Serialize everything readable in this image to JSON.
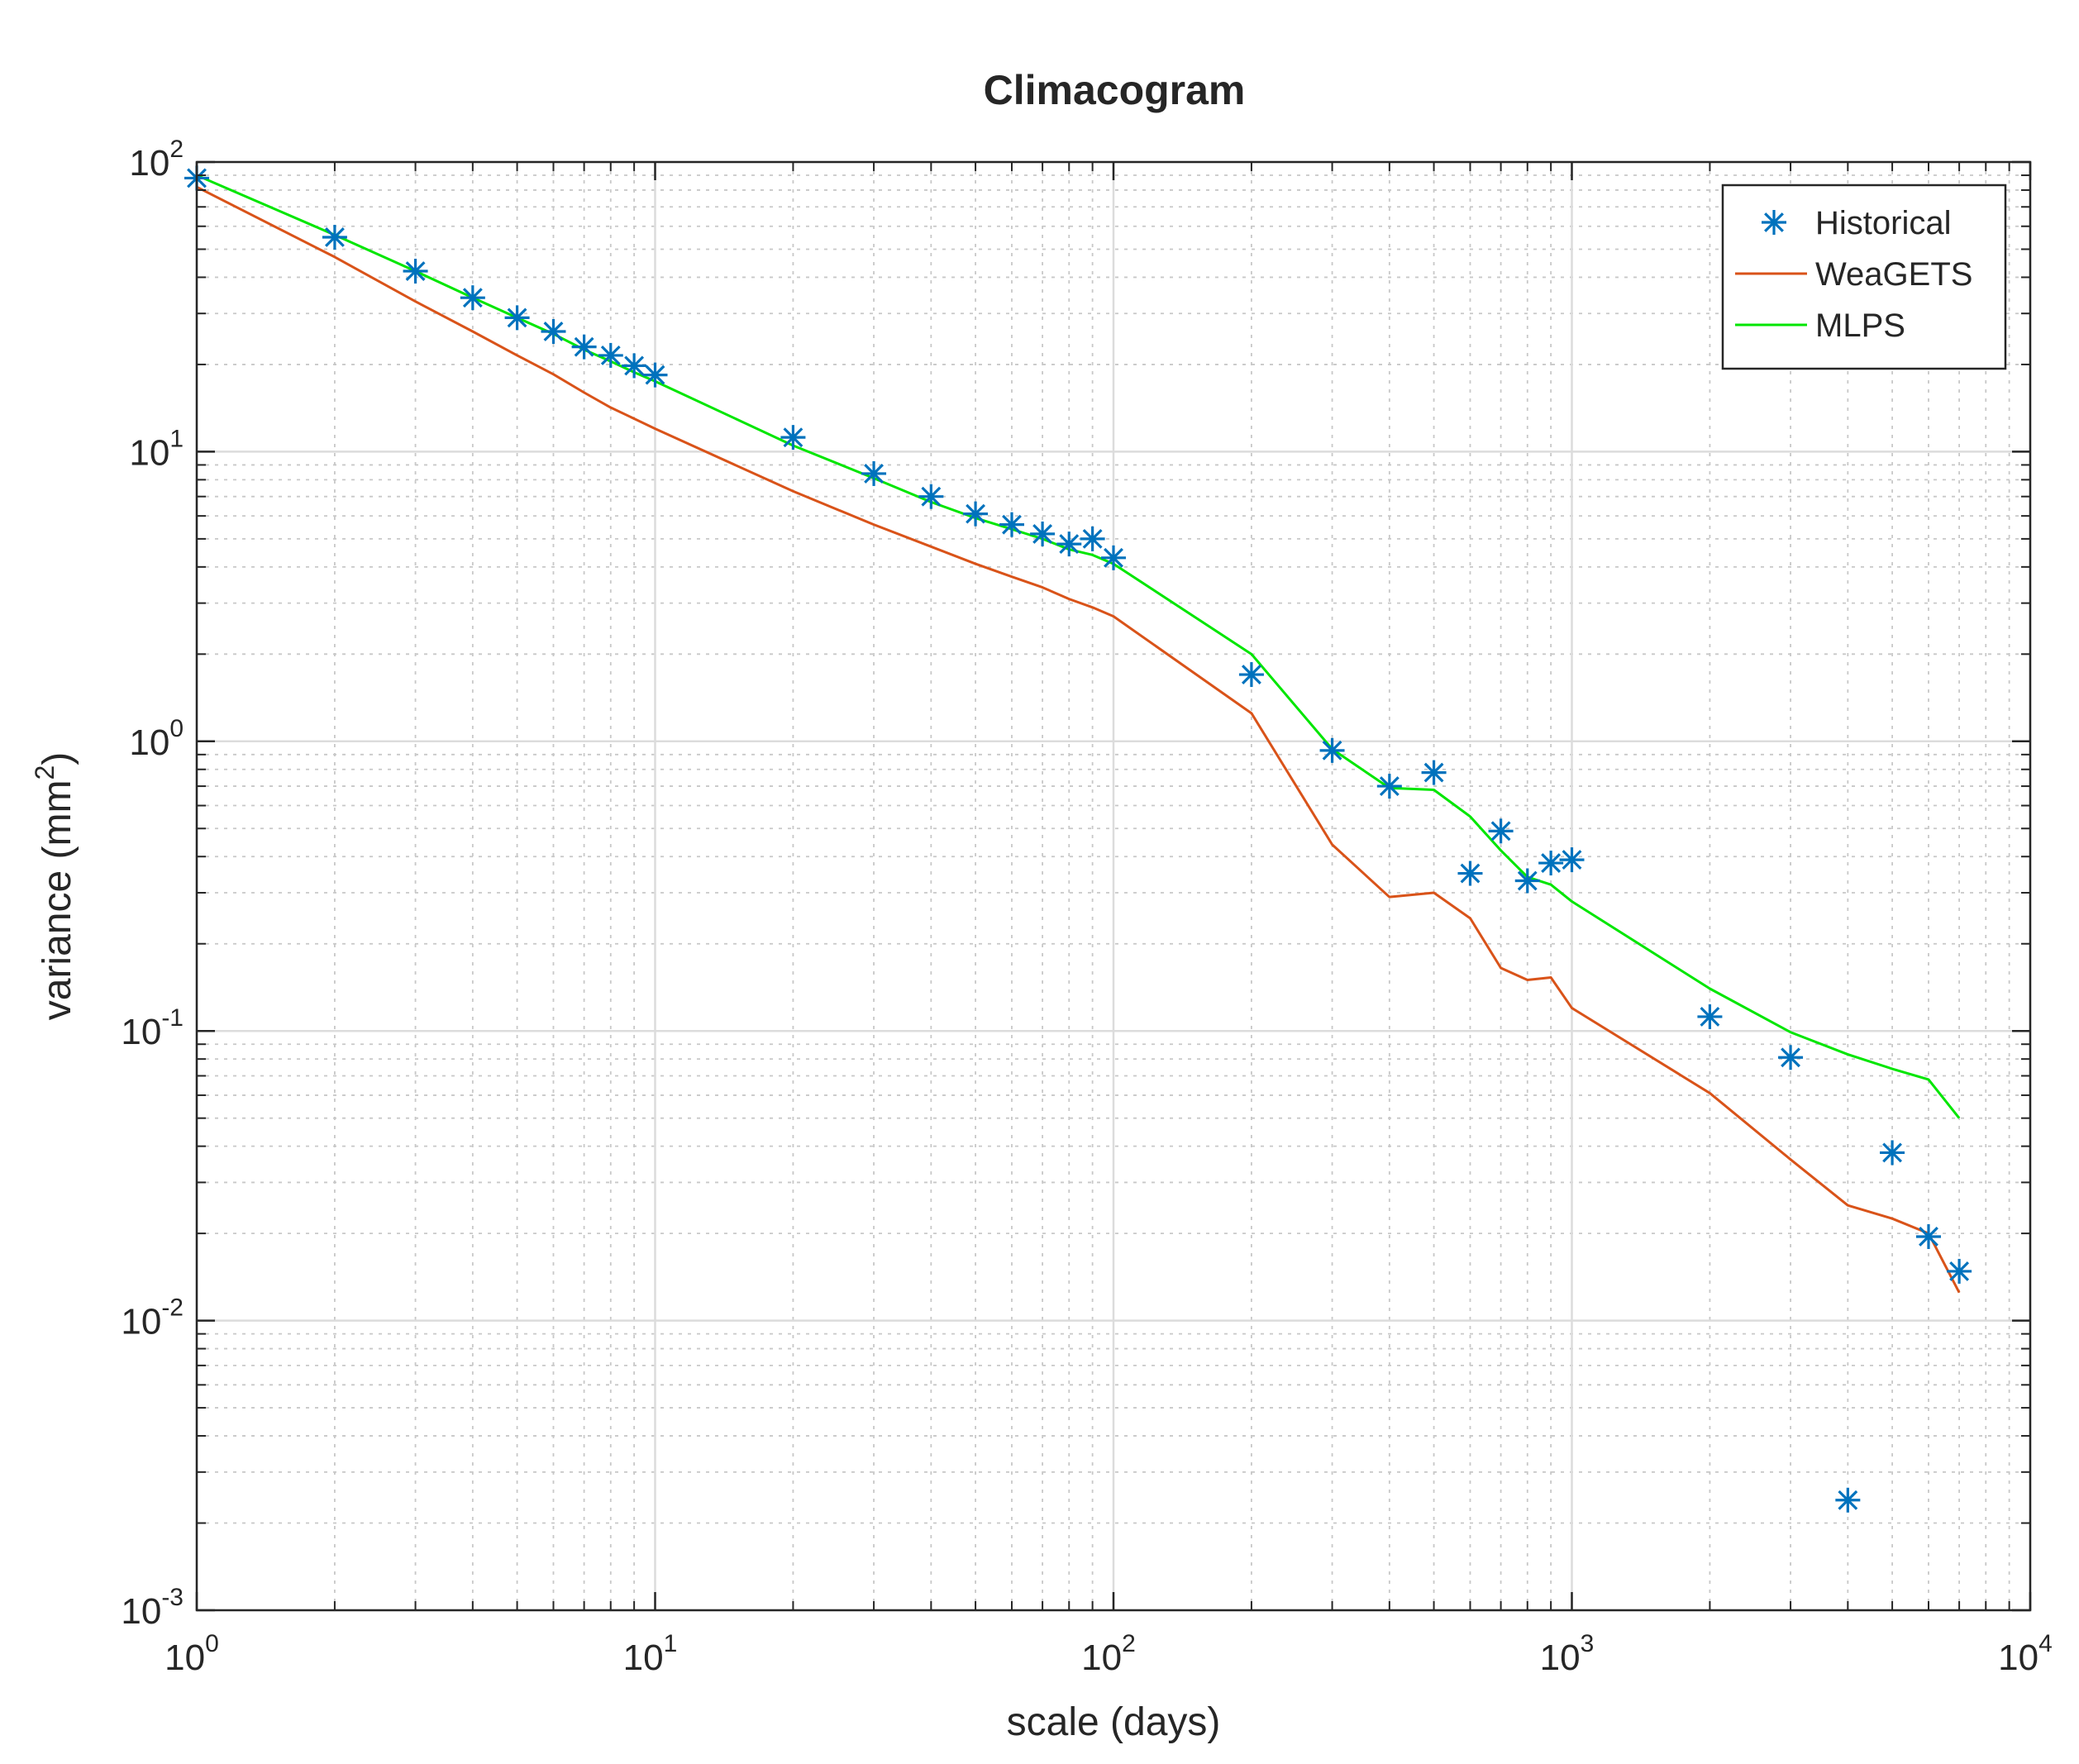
{
  "chart_data": {
    "type": "line",
    "title": "Climacogram",
    "xlabel": "scale (days)",
    "ylabel_prefix": "variance (mm",
    "ylabel_sup": "2",
    "ylabel_suffix": ")",
    "xscale": "log",
    "yscale": "log",
    "xlim": [
      1,
      10000
    ],
    "ylim": [
      0.001,
      100
    ],
    "grid": true,
    "legend_location": "top-right",
    "x_ticks": [
      {
        "base": "10",
        "exp": "0",
        "value": 1
      },
      {
        "base": "10",
        "exp": "1",
        "value": 10
      },
      {
        "base": "10",
        "exp": "2",
        "value": 100
      },
      {
        "base": "10",
        "exp": "3",
        "value": 1000
      },
      {
        "base": "10",
        "exp": "4",
        "value": 10000
      }
    ],
    "y_ticks": [
      {
        "base": "10",
        "exp": "-3",
        "value": 0.001
      },
      {
        "base": "10",
        "exp": "-2",
        "value": 0.01
      },
      {
        "base": "10",
        "exp": "-1",
        "value": 0.1
      },
      {
        "base": "10",
        "exp": "0",
        "value": 1
      },
      {
        "base": "10",
        "exp": "1",
        "value": 10
      },
      {
        "base": "10",
        "exp": "2",
        "value": 100
      }
    ],
    "series": [
      {
        "name": "Historical",
        "kind": "marker",
        "marker": "asterisk",
        "color": "#0072BD",
        "x": [
          1,
          2,
          3,
          4,
          5,
          6,
          7,
          8,
          9,
          10,
          20,
          30,
          40,
          50,
          60,
          70,
          80,
          90,
          100,
          200,
          300,
          400,
          500,
          600,
          700,
          800,
          900,
          1000,
          2000,
          3000,
          4000,
          5000,
          6000,
          7000
        ],
        "y": [
          88,
          55,
          42,
          34,
          29,
          26,
          23,
          21.5,
          19.8,
          18.4,
          11.2,
          8.4,
          7,
          6.1,
          5.6,
          5.2,
          4.8,
          5,
          4.3,
          1.7,
          0.93,
          0.7,
          0.78,
          0.35,
          0.49,
          0.33,
          0.38,
          0.39,
          0.112,
          0.081,
          0.0024,
          0.038,
          0.0195,
          0.0148
        ]
      },
      {
        "name": "WeaGETS",
        "kind": "line",
        "color": "#D95319",
        "x": [
          1,
          2,
          3,
          4,
          5,
          6,
          7,
          8,
          9,
          10,
          20,
          30,
          40,
          50,
          60,
          70,
          80,
          90,
          100,
          200,
          300,
          400,
          500,
          600,
          700,
          800,
          900,
          1000,
          2000,
          3000,
          4000,
          5000,
          6000,
          7000
        ],
        "y": [
          82,
          47,
          33,
          26,
          21.5,
          18.5,
          16,
          14.2,
          13,
          12,
          7.3,
          5.6,
          4.7,
          4.1,
          3.7,
          3.4,
          3.1,
          2.9,
          2.7,
          1.25,
          0.44,
          0.29,
          0.3,
          0.245,
          0.165,
          0.15,
          0.153,
          0.12,
          0.061,
          0.036,
          0.025,
          0.0225,
          0.02,
          0.0125
        ]
      },
      {
        "name": "MLPS",
        "kind": "line",
        "color": "#00E600",
        "x": [
          1,
          2,
          3,
          4,
          5,
          6,
          7,
          8,
          9,
          10,
          20,
          30,
          40,
          50,
          60,
          70,
          80,
          90,
          100,
          200,
          300,
          400,
          500,
          600,
          700,
          800,
          900,
          1000,
          2000,
          3000,
          4000,
          5000,
          6000,
          7000
        ],
        "y": [
          90,
          56,
          42,
          34,
          29,
          25.5,
          22.5,
          20.5,
          18.8,
          17.5,
          10.5,
          8.1,
          6.7,
          5.9,
          5.4,
          5,
          4.6,
          4.4,
          4.1,
          2,
          0.94,
          0.69,
          0.68,
          0.55,
          0.42,
          0.34,
          0.32,
          0.28,
          0.14,
          0.099,
          0.083,
          0.074,
          0.068,
          0.05
        ]
      }
    ]
  }
}
